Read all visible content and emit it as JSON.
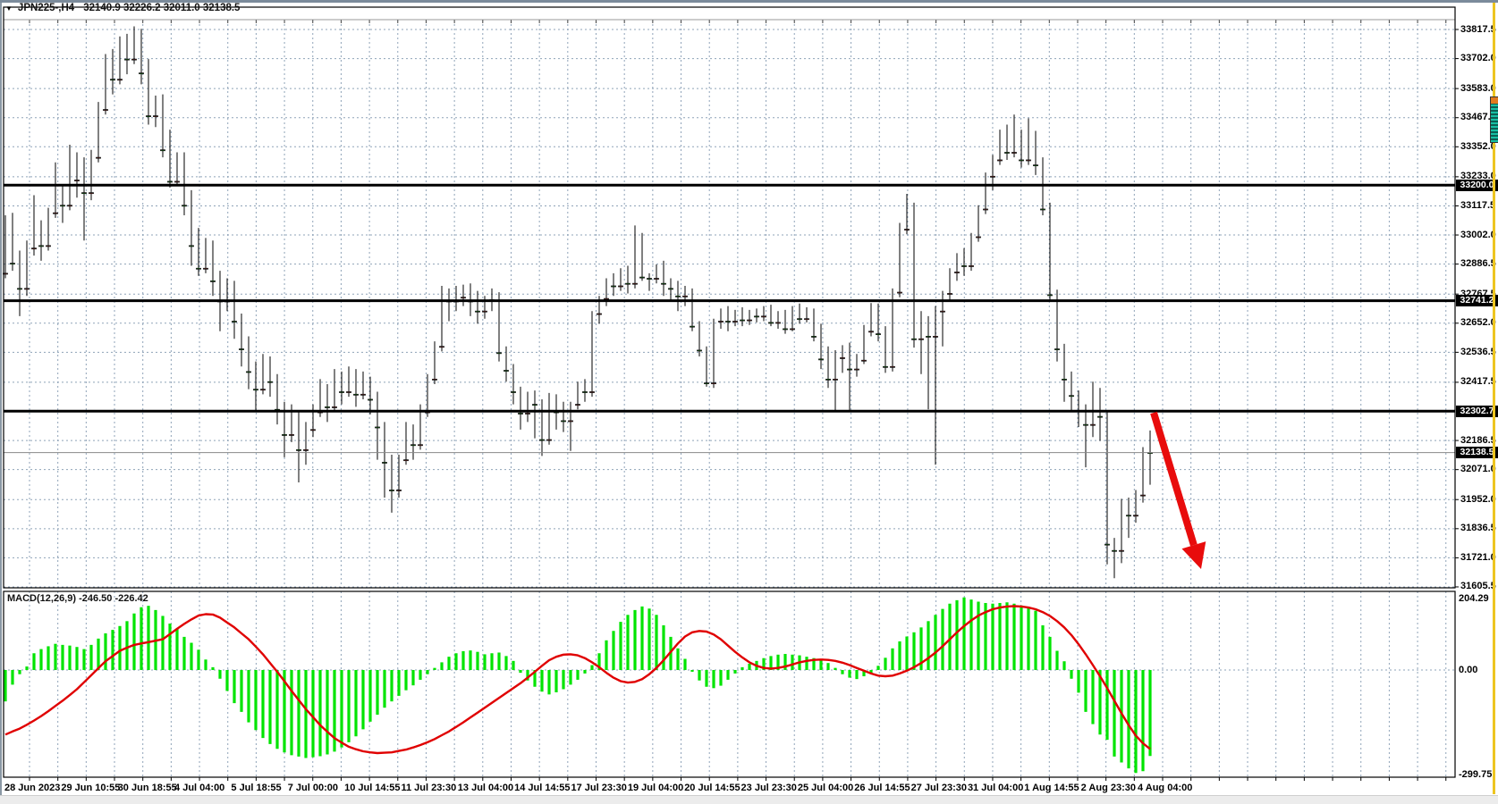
{
  "window": {
    "instrument": "JPN225-,H4",
    "ohlc_text": "32140.9 32226.2 32011.0 32138.5"
  },
  "chart_data": {
    "type": "candlestick+macd",
    "symbol": "JPN225-",
    "timeframe": "H4",
    "ohlc_display": {
      "open": "32140.9",
      "high": "32226.2",
      "low": "32011.0",
      "close": "32138.5"
    },
    "colors": {
      "bull": "#d9382e",
      "bear": "#0cd30c",
      "wick": "#000000",
      "grid": "#8fa3b8",
      "level_line": "#000000",
      "current_line": "#8a8a8a",
      "hist": "#00e400",
      "signal": "#e00000",
      "arrow": "#e80c0c",
      "background": "#ffffff"
    },
    "price_axis_ticks": [
      {
        "price": 33817.5,
        "label": "33817.5"
      },
      {
        "price": 33702.0,
        "label": "33702.0"
      },
      {
        "price": 33583.0,
        "label": "33583.0"
      },
      {
        "price": 33467.5,
        "label": "33467.5"
      },
      {
        "price": 33352.0,
        "label": "33352.0"
      },
      {
        "price": 33233.0,
        "label": "33233.0"
      },
      {
        "price": 33117.5,
        "label": "33117.5"
      },
      {
        "price": 33002.0,
        "label": "33002.0"
      },
      {
        "price": 32886.5,
        "label": "32886.5"
      },
      {
        "price": 32767.5,
        "label": "32767.5"
      },
      {
        "price": 32652.0,
        "label": "32652.0"
      },
      {
        "price": 32536.5,
        "label": "32536.5"
      },
      {
        "price": 32417.5,
        "label": "32417.5"
      },
      {
        "price": 32186.5,
        "label": "32186.5"
      },
      {
        "price": 32071.0,
        "label": "32071.0"
      },
      {
        "price": 31952.0,
        "label": "31952.0"
      },
      {
        "price": 31836.5,
        "label": "31836.5"
      },
      {
        "price": 31721.0,
        "label": "31721.0"
      },
      {
        "price": 31605.5,
        "label": "31605.5"
      }
    ],
    "level_lines": [
      {
        "price": 33200.0,
        "label": "33200.0"
      },
      {
        "price": 32741.2,
        "label": "32741.2"
      },
      {
        "price": 32302.7,
        "label": "32302.7"
      }
    ],
    "current_price": {
      "price": 32138.5,
      "label": "32138.5"
    },
    "time_labels": [
      "28 Jun 2023",
      "29 Jun 10:55",
      "30 Jun 18:55",
      "4 Jul 04:00",
      "5 Jul 18:55",
      "7 Jul 00:00",
      "10 Jul 14:55",
      "11 Jul 23:30",
      "13 Jul 04:00",
      "14 Jul 14:55",
      "17 Jul 23:30",
      "19 Jul 04:00",
      "20 Jul 14:55",
      "23 Jul 23:30",
      "25 Jul 04:00",
      "26 Jul 14:55",
      "27 Jul 23:30",
      "31 Jul 04:00",
      "1 Aug 14:55",
      "2 Aug 23:30",
      "4 Aug 04:00"
    ],
    "candles": [
      [
        32850,
        33080,
        32830,
        33050
      ],
      [
        33050,
        33090,
        32860,
        32890
      ],
      [
        32890,
        32940,
        32680,
        32790
      ],
      [
        32790,
        32980,
        32760,
        32950
      ],
      [
        32950,
        33160,
        32920,
        33030
      ],
      [
        33030,
        33060,
        32900,
        32960
      ],
      [
        32960,
        33110,
        32940,
        33090
      ],
      [
        33090,
        33290,
        33070,
        33160
      ],
      [
        33160,
        33200,
        33050,
        33120
      ],
      [
        33120,
        33360,
        33100,
        33220
      ],
      [
        33220,
        33330,
        33150,
        33290
      ],
      [
        33290,
        33310,
        32980,
        33170
      ],
      [
        33170,
        33340,
        33140,
        33310
      ],
      [
        33310,
        33530,
        33290,
        33500
      ],
      [
        33500,
        33720,
        33480,
        33690
      ],
      [
        33690,
        33740,
        33560,
        33620
      ],
      [
        33620,
        33790,
        33600,
        33760
      ],
      [
        33760,
        33800,
        33640,
        33700
      ],
      [
        33700,
        33830,
        33680,
        33800
      ],
      [
        33800,
        33820,
        33600,
        33645
      ],
      [
        33645,
        33700,
        33440,
        33475
      ],
      [
        33475,
        33555,
        33430,
        33540
      ],
      [
        33540,
        33560,
        33310,
        33340
      ],
      [
        33340,
        33420,
        33190,
        33215
      ],
      [
        33215,
        33330,
        33200,
        33310
      ],
      [
        33310,
        33330,
        33080,
        33120
      ],
      [
        33120,
        33180,
        32880,
        32960
      ],
      [
        32960,
        33030,
        32840,
        32870
      ],
      [
        32870,
        32990,
        32850,
        32960
      ],
      [
        32960,
        32980,
        32760,
        32820
      ],
      [
        32820,
        32860,
        32620,
        32740
      ],
      [
        32740,
        32830,
        32700,
        32800
      ],
      [
        32800,
        32820,
        32590,
        32660
      ],
      [
        32660,
        32690,
        32480,
        32550
      ],
      [
        32550,
        32600,
        32390,
        32460
      ],
      [
        32460,
        32500,
        32300,
        32390
      ],
      [
        32390,
        32530,
        32370,
        32500
      ],
      [
        32500,
        32520,
        32360,
        32420
      ],
      [
        32420,
        32450,
        32250,
        32310
      ],
      [
        32310,
        32340,
        32120,
        32210
      ],
      [
        32210,
        32330,
        32180,
        32290
      ],
      [
        32290,
        32300,
        32020,
        32150
      ],
      [
        32150,
        32260,
        32090,
        32230
      ],
      [
        32230,
        32330,
        32200,
        32300
      ],
      [
        32300,
        32430,
        32280,
        32390
      ],
      [
        32390,
        32410,
        32260,
        32320
      ],
      [
        32320,
        32470,
        32300,
        32440
      ],
      [
        32440,
        32460,
        32330,
        32380
      ],
      [
        32380,
        32480,
        32360,
        32450
      ],
      [
        32450,
        32470,
        32320,
        32370
      ],
      [
        32370,
        32460,
        32350,
        32430
      ],
      [
        32430,
        32440,
        32290,
        32350
      ],
      [
        32350,
        32380,
        32110,
        32240
      ],
      [
        32240,
        32260,
        31960,
        32100
      ],
      [
        32100,
        32130,
        31900,
        31990
      ],
      [
        31990,
        32130,
        31960,
        32110
      ],
      [
        32110,
        32260,
        32090,
        32230
      ],
      [
        32230,
        32250,
        32110,
        32170
      ],
      [
        32170,
        32330,
        32150,
        32300
      ],
      [
        32300,
        32450,
        32280,
        32430
      ],
      [
        32430,
        32580,
        32410,
        32560
      ],
      [
        32560,
        32800,
        32540,
        32760
      ],
      [
        32760,
        32790,
        32660,
        32740
      ],
      [
        32740,
        32800,
        32700,
        32755
      ],
      [
        32755,
        32805,
        32720,
        32790
      ],
      [
        32790,
        32810,
        32680,
        32740
      ],
      [
        32740,
        32780,
        32650,
        32700
      ],
      [
        32700,
        32760,
        32670,
        32745
      ],
      [
        32745,
        32790,
        32700,
        32760
      ],
      [
        32760,
        32775,
        32500,
        32535
      ],
      [
        32535,
        32560,
        32420,
        32465
      ],
      [
        32465,
        32490,
        32330,
        32380
      ],
      [
        32380,
        32400,
        32230,
        32295
      ],
      [
        32295,
        32380,
        32260,
        32365
      ],
      [
        32365,
        32385,
        32195,
        32330
      ],
      [
        32330,
        32350,
        32125,
        32190
      ],
      [
        32190,
        32375,
        32170,
        32350
      ],
      [
        32350,
        32370,
        32230,
        32300
      ],
      [
        32300,
        32340,
        32220,
        32265
      ],
      [
        32265,
        32340,
        32145,
        32330
      ],
      [
        32330,
        32420,
        32310,
        32410
      ],
      [
        32410,
        32430,
        32340,
        32380
      ],
      [
        32380,
        32700,
        32360,
        32690
      ],
      [
        32690,
        32760,
        32650,
        32750
      ],
      [
        32750,
        32830,
        32720,
        32825
      ],
      [
        32825,
        32850,
        32760,
        32800
      ],
      [
        32800,
        32870,
        32780,
        32850
      ],
      [
        32850,
        32880,
        32770,
        32810
      ],
      [
        32810,
        33040,
        32790,
        32995
      ],
      [
        32995,
        33010,
        32820,
        32835
      ],
      [
        32835,
        32850,
        32780,
        32830
      ],
      [
        32830,
        32885,
        32810,
        32880
      ],
      [
        32880,
        32900,
        32760,
        32810
      ],
      [
        32810,
        32830,
        32740,
        32790
      ],
      [
        32790,
        32820,
        32700,
        32760
      ],
      [
        32760,
        32800,
        32720,
        32775
      ],
      [
        32775,
        32790,
        32620,
        32640
      ],
      [
        32640,
        32660,
        32520,
        32545
      ],
      [
        32545,
        32560,
        32400,
        32415
      ],
      [
        32415,
        32670,
        32395,
        32660
      ],
      [
        32660,
        32710,
        32630,
        32695
      ],
      [
        32695,
        32720,
        32620,
        32660
      ],
      [
        32660,
        32705,
        32640,
        32690
      ],
      [
        32690,
        32715,
        32640,
        32665
      ],
      [
        32665,
        32705,
        32645,
        32695
      ],
      [
        32695,
        32710,
        32655,
        32680
      ],
      [
        32680,
        32720,
        32660,
        32710
      ],
      [
        32710,
        32725,
        32640,
        32655
      ],
      [
        32655,
        32700,
        32630,
        32690
      ],
      [
        32690,
        32705,
        32610,
        32630
      ],
      [
        32630,
        32720,
        32620,
        32705
      ],
      [
        32705,
        32730,
        32650,
        32670
      ],
      [
        32670,
        32715,
        32655,
        32700
      ],
      [
        32700,
        32710,
        32580,
        32600
      ],
      [
        32600,
        32650,
        32470,
        32510
      ],
      [
        32510,
        32560,
        32395,
        32430
      ],
      [
        32430,
        32545,
        32302,
        32515
      ],
      [
        32515,
        32565,
        32455,
        32540
      ],
      [
        32540,
        32575,
        32300,
        32470
      ],
      [
        32470,
        32530,
        32440,
        32505
      ],
      [
        32505,
        32645,
        32490,
        32620
      ],
      [
        32620,
        32732,
        32600,
        32715
      ],
      [
        32715,
        32730,
        32580,
        32610
      ],
      [
        32610,
        32640,
        32455,
        32480
      ],
      [
        32480,
        32790,
        32460,
        32775
      ],
      [
        32775,
        33050,
        32755,
        33025
      ],
      [
        33025,
        33165,
        33005,
        33120
      ],
      [
        33120,
        33130,
        32555,
        32590
      ],
      [
        32590,
        32700,
        32450,
        32660
      ],
      [
        32660,
        32680,
        32310,
        32600
      ],
      [
        32600,
        32720,
        32090,
        32700
      ],
      [
        32700,
        32780,
        32560,
        32770
      ],
      [
        32770,
        32870,
        32740,
        32855
      ],
      [
        32855,
        32930,
        32820,
        32920
      ],
      [
        32920,
        32950,
        32840,
        32880
      ],
      [
        32880,
        33010,
        32860,
        32995
      ],
      [
        32995,
        33120,
        32975,
        33105
      ],
      [
        33105,
        33250,
        33085,
        33235
      ],
      [
        33235,
        33320,
        33180,
        33300
      ],
      [
        33300,
        33420,
        33280,
        33405
      ],
      [
        33405,
        33440,
        33300,
        33330
      ],
      [
        33330,
        33480,
        33310,
        33390
      ],
      [
        33390,
        33420,
        33270,
        33300
      ],
      [
        33300,
        33465,
        33280,
        33385
      ],
      [
        33385,
        33415,
        33240,
        33280
      ],
      [
        33280,
        33310,
        33080,
        33105
      ],
      [
        33105,
        33130,
        32740,
        32765
      ],
      [
        32765,
        32785,
        32500,
        32550
      ],
      [
        32550,
        32570,
        32340,
        32430
      ],
      [
        32430,
        32460,
        32300,
        32365
      ],
      [
        32365,
        32385,
        32240,
        32305
      ],
      [
        32305,
        32330,
        32080,
        32250
      ],
      [
        32250,
        32420,
        32200,
        32375
      ],
      [
        32375,
        32395,
        32185,
        32282
      ],
      [
        32282,
        32305,
        31695,
        31775
      ],
      [
        31775,
        31800,
        31640,
        31750
      ],
      [
        31750,
        31955,
        31700,
        31940
      ],
      [
        31940,
        31960,
        31800,
        31890
      ],
      [
        31890,
        31990,
        31860,
        31970
      ],
      [
        31970,
        32160,
        31940,
        32138
      ],
      [
        32140.9,
        32226.2,
        32011.0,
        32138.5
      ]
    ],
    "macd": {
      "label": "MACD(12,26,9)",
      "values_text": "-246.50 -226.42",
      "axis_ticks": [
        {
          "value": 204.29,
          "label": "204.29"
        },
        {
          "value": 0,
          "label": "0.00"
        },
        {
          "value": -299.75,
          "label": "-299.75"
        }
      ],
      "histogram": [
        -90,
        -42,
        -12,
        10,
        48,
        60,
        68,
        75,
        72,
        70,
        66,
        60,
        72,
        90,
        105,
        115,
        126,
        140,
        162,
        180,
        184,
        172,
        155,
        133,
        118,
        95,
        78,
        58,
        30,
        8,
        -25,
        -60,
        -95,
        -120,
        -150,
        -172,
        -195,
        -212,
        -226,
        -236,
        -244,
        -248,
        -252,
        -250,
        -247,
        -242,
        -234,
        -222,
        -207,
        -190,
        -170,
        -148,
        -128,
        -108,
        -90,
        -74,
        -58,
        -44,
        -28,
        -12,
        6,
        22,
        38,
        48,
        54,
        56,
        52,
        45,
        48,
        50,
        40,
        26,
        -8,
        -30,
        -48,
        -62,
        -70,
        -64,
        -55,
        -42,
        -28,
        -10,
        14,
        48,
        85,
        112,
        138,
        158,
        172,
        182,
        176,
        158,
        128,
        95,
        62,
        32,
        -5,
        -30,
        -48,
        -52,
        -45,
        -28,
        -10,
        8,
        18,
        26,
        34,
        40,
        44,
        46,
        44,
        42,
        38,
        34,
        28,
        20,
        6,
        -12,
        -22,
        -26,
        -18,
        -8,
        12,
        35,
        62,
        82,
        96,
        108,
        122,
        140,
        158,
        175,
        190,
        200,
        208,
        202,
        196,
        192,
        190,
        192,
        194,
        190,
        185,
        180,
        170,
        128,
        95,
        55,
        25,
        -25,
        -65,
        -120,
        -155,
        -185,
        -200,
        -248,
        -265,
        -282,
        -295,
        -290,
        -246.5
      ],
      "signal": [
        -185,
        -176,
        -168,
        -157,
        -145,
        -132,
        -118,
        -103,
        -88,
        -72,
        -55,
        -35,
        -15,
        5,
        25,
        40,
        55,
        64,
        72,
        76,
        80,
        84,
        88,
        103,
        118,
        132,
        145,
        156,
        160,
        159,
        150,
        136,
        122,
        105,
        88,
        67,
        45,
        20,
        -5,
        -32,
        -60,
        -86,
        -112,
        -135,
        -158,
        -177,
        -195,
        -208,
        -220,
        -227,
        -233,
        -236,
        -238,
        -237,
        -236,
        -232,
        -228,
        -222,
        -215,
        -207,
        -198,
        -187,
        -176,
        -163,
        -150,
        -136,
        -122,
        -108,
        -94,
        -80,
        -66,
        -52,
        -38,
        -22,
        -5,
        12,
        28,
        38,
        44,
        45,
        42,
        34,
        22,
        8,
        -8,
        -22,
        -32,
        -36,
        -34,
        -26,
        -12,
        6,
        28,
        52,
        76,
        96,
        108,
        112,
        110,
        102,
        88,
        70,
        52,
        36,
        22,
        12,
        6,
        4,
        6,
        10,
        16,
        22,
        26,
        29,
        30,
        29,
        26,
        21,
        14,
        6,
        -2,
        -10,
        -16,
        -18,
        -16,
        -10,
        -2,
        8,
        20,
        34,
        50,
        68,
        88,
        108,
        126,
        142,
        156,
        166,
        174,
        179,
        182,
        183,
        182,
        179,
        174,
        166,
        155,
        140,
        122,
        100,
        74,
        45,
        14,
        -18,
        -52,
        -88,
        -124,
        -158,
        -188,
        -210,
        -226.4
      ]
    },
    "annotation_arrow": {
      "from": [
        1290,
        462
      ],
      "to": [
        1343,
        637
      ]
    }
  }
}
